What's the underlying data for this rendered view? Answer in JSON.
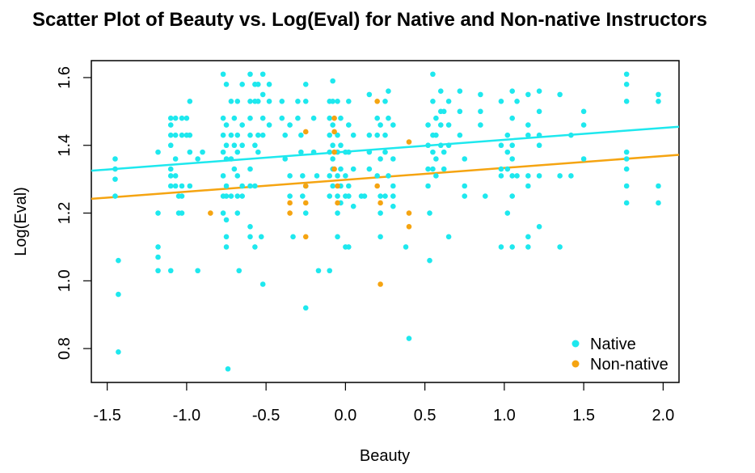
{
  "chart_data": {
    "type": "scatter",
    "title": "Scatter Plot of Beauty vs. Log(Eval) for Native and Non-native Instructors",
    "xlabel": "Beauty",
    "ylabel": "Log(Eval)",
    "xlim": [
      -1.6,
      2.1
    ],
    "ylim": [
      0.7,
      1.65
    ],
    "x_ticks": [
      -1.5,
      -1.0,
      -0.5,
      0.0,
      0.5,
      1.0,
      1.5,
      2.0
    ],
    "x_tick_labels": [
      "-1.5",
      "-1.0",
      "-0.5",
      "0.0",
      "0.5",
      "1.0",
      "1.5",
      "2.0"
    ],
    "y_ticks": [
      0.8,
      1.0,
      1.2,
      1.4,
      1.6
    ],
    "y_tick_labels": [
      "0.8",
      "1.0",
      "1.2",
      "1.4",
      "1.6"
    ],
    "grid": false,
    "legend": {
      "position": "bottom-right",
      "entries": [
        "Native",
        "Non-native"
      ]
    },
    "series": [
      {
        "name": "Native",
        "color": "#1ee8ee",
        "points": [
          [
            -1.45,
            1.36
          ],
          [
            -1.45,
            1.33
          ],
          [
            -1.45,
            1.3
          ],
          [
            -1.45,
            1.25
          ],
          [
            -1.43,
            1.06
          ],
          [
            -1.43,
            0.96
          ],
          [
            -1.43,
            0.79
          ],
          [
            -1.18,
            1.38
          ],
          [
            -1.18,
            1.2
          ],
          [
            -1.18,
            1.1
          ],
          [
            -1.18,
            1.07
          ],
          [
            -1.18,
            1.03
          ],
          [
            -1.1,
            1.48
          ],
          [
            -1.1,
            1.46
          ],
          [
            -1.1,
            1.43
          ],
          [
            -1.1,
            1.4
          ],
          [
            -1.1,
            1.33
          ],
          [
            -1.1,
            1.31
          ],
          [
            -1.1,
            1.28
          ],
          [
            -1.1,
            1.03
          ],
          [
            -1.07,
            1.48
          ],
          [
            -1.07,
            1.43
          ],
          [
            -1.07,
            1.36
          ],
          [
            -1.07,
            1.31
          ],
          [
            -1.07,
            1.28
          ],
          [
            -1.05,
            1.25
          ],
          [
            -1.05,
            1.2
          ],
          [
            -1.03,
            1.48
          ],
          [
            -1.03,
            1.43
          ],
          [
            -1.03,
            1.28
          ],
          [
            -1.03,
            1.25
          ],
          [
            -1.03,
            1.2
          ],
          [
            -1.0,
            1.48
          ],
          [
            -1.0,
            1.43
          ],
          [
            -0.98,
            1.53
          ],
          [
            -0.98,
            1.43
          ],
          [
            -0.98,
            1.38
          ],
          [
            -0.98,
            1.28
          ],
          [
            -0.93,
            1.36
          ],
          [
            -0.93,
            1.03
          ],
          [
            -0.9,
            1.38
          ],
          [
            -0.77,
            1.61
          ],
          [
            -0.77,
            1.48
          ],
          [
            -0.77,
            1.43
          ],
          [
            -0.77,
            1.38
          ],
          [
            -0.77,
            1.31
          ],
          [
            -0.77,
            1.25
          ],
          [
            -0.77,
            1.2
          ],
          [
            -0.75,
            1.58
          ],
          [
            -0.75,
            1.46
          ],
          [
            -0.75,
            1.4
          ],
          [
            -0.75,
            1.36
          ],
          [
            -0.75,
            1.28
          ],
          [
            -0.75,
            1.25
          ],
          [
            -0.75,
            1.18
          ],
          [
            -0.75,
            1.13
          ],
          [
            -0.75,
            1.1
          ],
          [
            -0.74,
            0.74
          ],
          [
            -0.72,
            1.53
          ],
          [
            -0.72,
            1.43
          ],
          [
            -0.72,
            1.36
          ],
          [
            -0.72,
            1.25
          ],
          [
            -0.7,
            1.48
          ],
          [
            -0.7,
            1.4
          ],
          [
            -0.7,
            1.33
          ],
          [
            -0.68,
            1.53
          ],
          [
            -0.68,
            1.43
          ],
          [
            -0.68,
            1.38
          ],
          [
            -0.68,
            1.31
          ],
          [
            -0.68,
            1.25
          ],
          [
            -0.68,
            1.2
          ],
          [
            -0.67,
            1.03
          ],
          [
            -0.65,
            1.58
          ],
          [
            -0.65,
            1.46
          ],
          [
            -0.65,
            1.4
          ],
          [
            -0.65,
            1.28
          ],
          [
            -0.65,
            1.25
          ],
          [
            -0.6,
            1.61
          ],
          [
            -0.6,
            1.53
          ],
          [
            -0.6,
            1.48
          ],
          [
            -0.6,
            1.43
          ],
          [
            -0.6,
            1.33
          ],
          [
            -0.6,
            1.28
          ],
          [
            -0.6,
            1.16
          ],
          [
            -0.6,
            1.13
          ],
          [
            -0.57,
            1.58
          ],
          [
            -0.57,
            1.53
          ],
          [
            -0.57,
            1.4
          ],
          [
            -0.57,
            1.28
          ],
          [
            -0.57,
            1.1
          ],
          [
            -0.55,
            1.58
          ],
          [
            -0.55,
            1.53
          ],
          [
            -0.55,
            1.43
          ],
          [
            -0.55,
            1.38
          ],
          [
            -0.53,
            1.13
          ],
          [
            -0.52,
            1.61
          ],
          [
            -0.52,
            1.55
          ],
          [
            -0.52,
            1.48
          ],
          [
            -0.52,
            1.43
          ],
          [
            -0.52,
            0.99
          ],
          [
            -0.48,
            1.58
          ],
          [
            -0.48,
            1.53
          ],
          [
            -0.48,
            1.46
          ],
          [
            -0.4,
            1.53
          ],
          [
            -0.4,
            1.48
          ],
          [
            -0.38,
            1.43
          ],
          [
            -0.38,
            1.36
          ],
          [
            -0.35,
            1.46
          ],
          [
            -0.35,
            1.31
          ],
          [
            -0.35,
            1.25
          ],
          [
            -0.33,
            1.13
          ],
          [
            -0.3,
            1.53
          ],
          [
            -0.3,
            1.48
          ],
          [
            -0.28,
            1.43
          ],
          [
            -0.28,
            1.38
          ],
          [
            -0.27,
            1.31
          ],
          [
            -0.27,
            1.25
          ],
          [
            -0.25,
            1.58
          ],
          [
            -0.25,
            1.53
          ],
          [
            -0.25,
            1.28
          ],
          [
            -0.25,
            1.2
          ],
          [
            -0.25,
            0.92
          ],
          [
            -0.2,
            1.48
          ],
          [
            -0.2,
            1.38
          ],
          [
            -0.18,
            1.31
          ],
          [
            -0.17,
            1.03
          ],
          [
            -0.1,
            1.53
          ],
          [
            -0.1,
            1.48
          ],
          [
            -0.1,
            1.43
          ],
          [
            -0.1,
            1.38
          ],
          [
            -0.1,
            1.31
          ],
          [
            -0.1,
            1.25
          ],
          [
            -0.1,
            1.03
          ],
          [
            -0.08,
            1.59
          ],
          [
            -0.08,
            1.53
          ],
          [
            -0.08,
            1.46
          ],
          [
            -0.08,
            1.4
          ],
          [
            -0.08,
            1.36
          ],
          [
            -0.08,
            1.33
          ],
          [
            -0.08,
            1.28
          ],
          [
            -0.05,
            1.53
          ],
          [
            -0.05,
            1.43
          ],
          [
            -0.05,
            1.38
          ],
          [
            -0.05,
            1.31
          ],
          [
            -0.05,
            1.25
          ],
          [
            -0.05,
            1.2
          ],
          [
            -0.05,
            1.13
          ],
          [
            -0.03,
            1.48
          ],
          [
            -0.03,
            1.4
          ],
          [
            -0.03,
            1.33
          ],
          [
            -0.03,
            1.28
          ],
          [
            -0.03,
            1.23
          ],
          [
            0.0,
            1.38
          ],
          [
            0.0,
            1.31
          ],
          [
            0.0,
            1.25
          ],
          [
            0.0,
            1.1
          ],
          [
            0.02,
            1.53
          ],
          [
            0.02,
            1.46
          ],
          [
            0.02,
            1.38
          ],
          [
            0.02,
            1.28
          ],
          [
            0.02,
            1.25
          ],
          [
            0.02,
            1.1
          ],
          [
            0.05,
            1.43
          ],
          [
            0.05,
            1.33
          ],
          [
            0.05,
            1.22
          ],
          [
            0.1,
            1.25
          ],
          [
            0.12,
            1.25
          ],
          [
            0.15,
            1.55
          ],
          [
            0.15,
            1.43
          ],
          [
            0.15,
            1.38
          ],
          [
            0.15,
            1.33
          ],
          [
            0.2,
            1.48
          ],
          [
            0.2,
            1.43
          ],
          [
            0.2,
            1.31
          ],
          [
            0.22,
            1.46
          ],
          [
            0.22,
            1.36
          ],
          [
            0.22,
            1.25
          ],
          [
            0.22,
            1.2
          ],
          [
            0.22,
            1.13
          ],
          [
            0.25,
            1.53
          ],
          [
            0.25,
            1.43
          ],
          [
            0.25,
            1.38
          ],
          [
            0.25,
            1.25
          ],
          [
            0.27,
            1.56
          ],
          [
            0.27,
            1.48
          ],
          [
            0.27,
            1.31
          ],
          [
            0.3,
            1.46
          ],
          [
            0.3,
            1.36
          ],
          [
            0.3,
            1.28
          ],
          [
            0.3,
            1.25
          ],
          [
            0.3,
            1.22
          ],
          [
            0.38,
            1.1
          ],
          [
            0.4,
            0.83
          ],
          [
            0.52,
            1.46
          ],
          [
            0.52,
            1.4
          ],
          [
            0.52,
            1.33
          ],
          [
            0.52,
            1.28
          ],
          [
            0.53,
            1.2
          ],
          [
            0.53,
            1.06
          ],
          [
            0.55,
            1.61
          ],
          [
            0.55,
            1.53
          ],
          [
            0.55,
            1.43
          ],
          [
            0.55,
            1.38
          ],
          [
            0.55,
            1.33
          ],
          [
            0.57,
            1.48
          ],
          [
            0.57,
            1.43
          ],
          [
            0.57,
            1.36
          ],
          [
            0.57,
            1.31
          ],
          [
            0.6,
            1.56
          ],
          [
            0.6,
            1.5
          ],
          [
            0.6,
            1.46
          ],
          [
            0.6,
            1.4
          ],
          [
            0.62,
            1.5
          ],
          [
            0.62,
            1.38
          ],
          [
            0.62,
            1.33
          ],
          [
            0.65,
            1.53
          ],
          [
            0.65,
            1.46
          ],
          [
            0.65,
            1.4
          ],
          [
            0.65,
            1.13
          ],
          [
            0.72,
            1.56
          ],
          [
            0.72,
            1.5
          ],
          [
            0.72,
            1.43
          ],
          [
            0.75,
            1.36
          ],
          [
            0.75,
            1.28
          ],
          [
            0.75,
            1.25
          ],
          [
            0.85,
            1.55
          ],
          [
            0.85,
            1.5
          ],
          [
            0.85,
            1.46
          ],
          [
            0.88,
            1.25
          ],
          [
            0.98,
            1.53
          ],
          [
            0.98,
            1.4
          ],
          [
            0.98,
            1.33
          ],
          [
            0.98,
            1.31
          ],
          [
            0.98,
            1.1
          ],
          [
            1.02,
            1.43
          ],
          [
            1.02,
            1.38
          ],
          [
            1.02,
            1.33
          ],
          [
            1.02,
            1.2
          ],
          [
            1.05,
            1.56
          ],
          [
            1.05,
            1.48
          ],
          [
            1.05,
            1.4
          ],
          [
            1.05,
            1.36
          ],
          [
            1.05,
            1.31
          ],
          [
            1.05,
            1.25
          ],
          [
            1.05,
            1.1
          ],
          [
            1.08,
            1.53
          ],
          [
            1.08,
            1.31
          ],
          [
            1.15,
            1.55
          ],
          [
            1.15,
            1.46
          ],
          [
            1.15,
            1.43
          ],
          [
            1.15,
            1.31
          ],
          [
            1.15,
            1.28
          ],
          [
            1.15,
            1.13
          ],
          [
            1.15,
            1.1
          ],
          [
            1.22,
            1.56
          ],
          [
            1.22,
            1.5
          ],
          [
            1.22,
            1.43
          ],
          [
            1.22,
            1.4
          ],
          [
            1.22,
            1.31
          ],
          [
            1.22,
            1.16
          ],
          [
            1.35,
            1.55
          ],
          [
            1.35,
            1.31
          ],
          [
            1.35,
            1.1
          ],
          [
            1.42,
            1.43
          ],
          [
            1.42,
            1.31
          ],
          [
            1.5,
            1.5
          ],
          [
            1.5,
            1.46
          ],
          [
            1.5,
            1.36
          ],
          [
            1.77,
            1.61
          ],
          [
            1.77,
            1.58
          ],
          [
            1.77,
            1.53
          ],
          [
            1.77,
            1.38
          ],
          [
            1.77,
            1.36
          ],
          [
            1.77,
            1.33
          ],
          [
            1.77,
            1.28
          ],
          [
            1.77,
            1.23
          ],
          [
            1.97,
            1.55
          ],
          [
            1.97,
            1.53
          ],
          [
            1.97,
            1.28
          ],
          [
            1.97,
            1.23
          ]
        ]
      },
      {
        "name": "Non-native",
        "color": "#f5a411",
        "points": [
          [
            -0.85,
            1.2
          ],
          [
            -0.35,
            1.23
          ],
          [
            -0.35,
            1.2
          ],
          [
            -0.25,
            1.44
          ],
          [
            -0.25,
            1.28
          ],
          [
            -0.25,
            1.23
          ],
          [
            -0.25,
            1.13
          ],
          [
            -0.07,
            1.48
          ],
          [
            -0.07,
            1.44
          ],
          [
            -0.07,
            1.38
          ],
          [
            -0.07,
            1.33
          ],
          [
            -0.05,
            1.28
          ],
          [
            -0.05,
            1.23
          ],
          [
            0.2,
            1.53
          ],
          [
            0.2,
            1.28
          ],
          [
            0.22,
            1.23
          ],
          [
            0.22,
            0.99
          ],
          [
            0.4,
            1.41
          ],
          [
            0.4,
            1.2
          ],
          [
            0.4,
            1.16
          ]
        ]
      }
    ],
    "fit_lines": [
      {
        "name": "Native",
        "color": "#1ee8ee",
        "x": [
          -1.6,
          2.1
        ],
        "y": [
          1.325,
          1.455
        ]
      },
      {
        "name": "Non-native",
        "color": "#f5a411",
        "x": [
          -1.6,
          2.1
        ],
        "y": [
          1.242,
          1.372
        ]
      }
    ]
  }
}
